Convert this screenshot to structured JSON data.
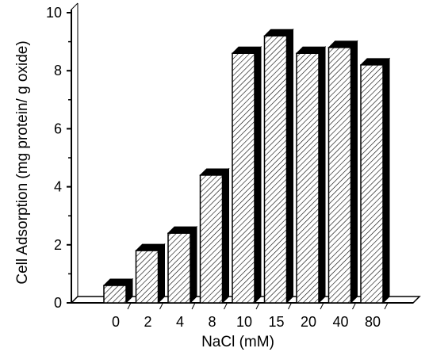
{
  "chart_data": {
    "type": "bar",
    "style": "3d-hatched",
    "xlabel": "NaCl (mM)",
    "ylabel": "Cell Adsorption (mg protein/ g oxide)",
    "categories": [
      "0",
      "2",
      "4",
      "8",
      "10",
      "15",
      "20",
      "40",
      "80"
    ],
    "values": [
      0.6,
      1.8,
      2.4,
      4.4,
      8.6,
      9.2,
      8.6,
      8.8,
      8.2
    ],
    "ylim": [
      0,
      10
    ],
    "yticks": [
      "0",
      "2",
      "4",
      "6",
      "8",
      "10"
    ],
    "grid": false,
    "legend": "none",
    "colors": {
      "bar_face": "#ffffff",
      "hatch": "#000000",
      "bar_side": "#000000",
      "axis": "#000000"
    }
  }
}
